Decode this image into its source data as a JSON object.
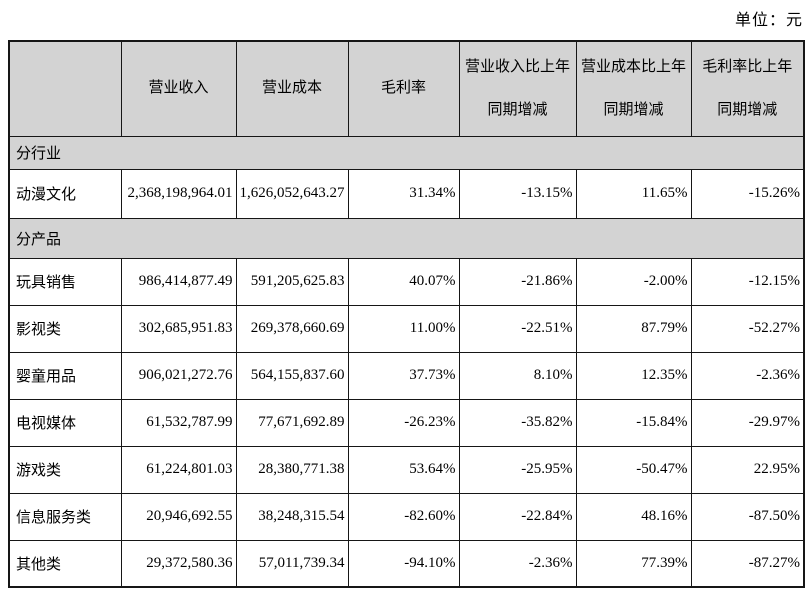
{
  "meta": {
    "unit_label": "单位：元"
  },
  "table": {
    "columns": [
      "",
      "营业收入",
      "营业成本",
      "毛利率",
      "营业收入比上年同期增减",
      "营业成本比上年同期增减",
      "毛利率比上年同期增减"
    ],
    "rows": [
      {
        "type": "section",
        "label": "分行业"
      },
      {
        "type": "data",
        "cells": [
          "动漫文化",
          "2,368,198,964.01",
          "1,626,052,643.27",
          "31.34%",
          "-13.15%",
          "11.65%",
          "-15.26%"
        ]
      },
      {
        "type": "section",
        "label": "分产品"
      },
      {
        "type": "data",
        "cells": [
          "玩具销售",
          "986,414,877.49",
          "591,205,625.83",
          "40.07%",
          "-21.86%",
          "-2.00%",
          "-12.15%"
        ]
      },
      {
        "type": "data",
        "cells": [
          "影视类",
          "302,685,951.83",
          "269,378,660.69",
          "11.00%",
          "-22.51%",
          "87.79%",
          "-52.27%"
        ]
      },
      {
        "type": "data",
        "cells": [
          "婴童用品",
          "906,021,272.76",
          "564,155,837.60",
          "37.73%",
          "8.10%",
          "12.35%",
          "-2.36%"
        ]
      },
      {
        "type": "data",
        "cells": [
          "电视媒体",
          "61,532,787.99",
          "77,671,692.89",
          "-26.23%",
          "-35.82%",
          "-15.84%",
          "-29.97%"
        ]
      },
      {
        "type": "data",
        "cells": [
          "游戏类",
          "61,224,801.03",
          "28,380,771.38",
          "53.64%",
          "-25.95%",
          "-50.47%",
          "22.95%"
        ]
      },
      {
        "type": "data",
        "cells": [
          "信息服务类",
          "20,946,692.55",
          "38,248,315.54",
          "-82.60%",
          "-22.84%",
          "48.16%",
          "-87.50%"
        ]
      },
      {
        "type": "data",
        "cells": [
          "其他类",
          "29,372,580.36",
          "57,011,739.34",
          "-94.10%",
          "-2.36%",
          "77.39%",
          "-87.27%"
        ]
      }
    ]
  }
}
